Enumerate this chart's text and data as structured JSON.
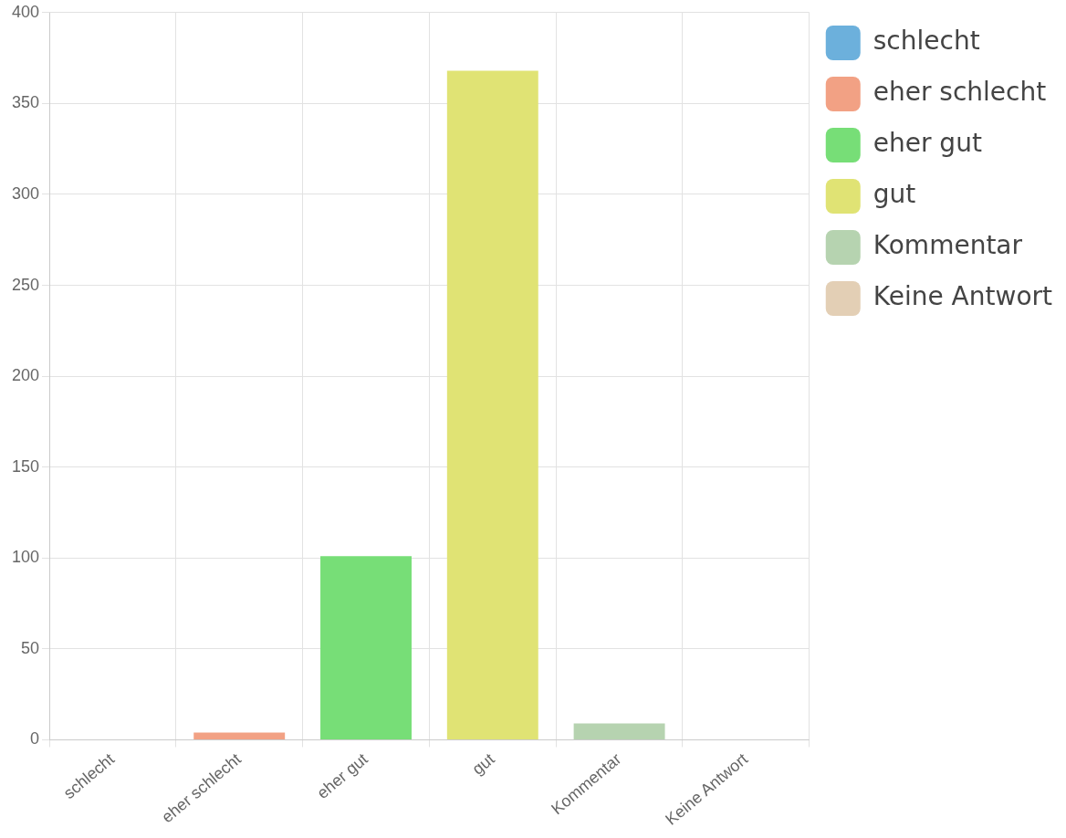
{
  "chart_data": {
    "type": "bar",
    "categories": [
      "schlecht",
      "eher schlecht",
      "eher gut",
      "gut",
      "Kommentar",
      "Keine Antwort"
    ],
    "series": [
      {
        "name": "schlecht",
        "color": "#6cb0dc",
        "values": [
          0,
          null,
          null,
          null,
          null,
          null
        ]
      },
      {
        "name": "eher schlecht",
        "color": "#f2a184",
        "values": [
          null,
          4,
          null,
          null,
          null,
          null
        ]
      },
      {
        "name": "eher gut",
        "color": "#77de77",
        "values": [
          null,
          null,
          101,
          null,
          null,
          null
        ]
      },
      {
        "name": "gut",
        "color": "#e0e374",
        "values": [
          null,
          null,
          null,
          368,
          null,
          null
        ]
      },
      {
        "name": "Kommentar",
        "color": "#b6d3b0",
        "values": [
          null,
          null,
          null,
          null,
          9,
          null
        ]
      },
      {
        "name": "Keine Antwort",
        "color": "#e3cfb5",
        "values": [
          null,
          null,
          null,
          null,
          null,
          0
        ]
      }
    ],
    "ylim": [
      0,
      400
    ],
    "yticks": [
      0,
      50,
      100,
      150,
      200,
      250,
      300,
      350,
      400
    ],
    "grid": true,
    "legend": "top right"
  }
}
